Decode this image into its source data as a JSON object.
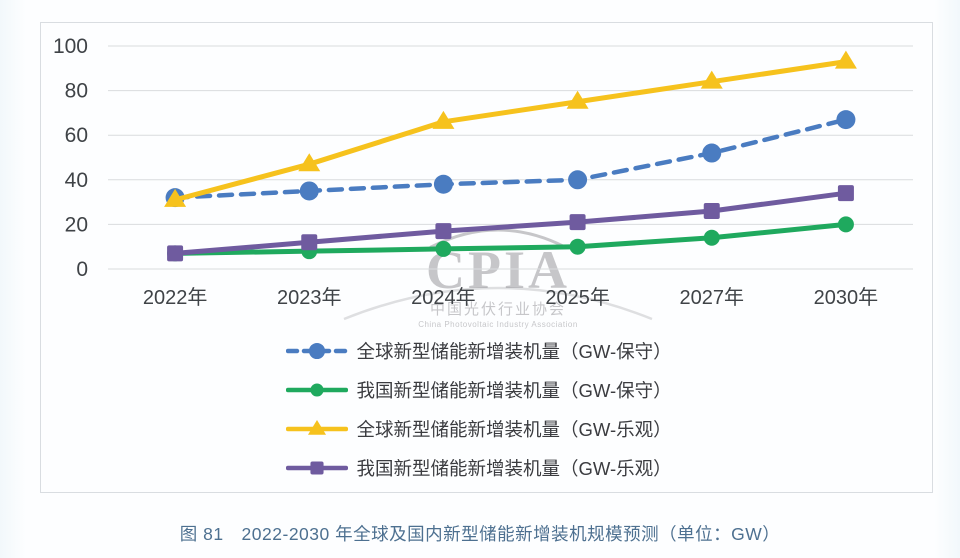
{
  "page": {
    "caption": "图 81　2022-2030 年全球及国内新型储能新增装机规模预测（单位：GW）"
  },
  "watermark": {
    "logo_text": "CPIA",
    "org_cn": "中国光伏行业协会",
    "org_en": "China Photovoltaic Industry Association"
  },
  "chart_data": {
    "type": "line",
    "categories": [
      "2022年",
      "2023年",
      "2024年",
      "2025年",
      "2027年",
      "2030年"
    ],
    "series": [
      {
        "name": "全球新型储能新增装机量（GW-保守）",
        "values": [
          32,
          35,
          38,
          40,
          52,
          67
        ],
        "color": "#4a7cc1",
        "marker": "circle",
        "dash": true
      },
      {
        "name": "我国新型储能新增装机量（GW-保守）",
        "values": [
          7,
          8,
          9,
          10,
          14,
          20
        ],
        "color": "#1fa95e",
        "marker": "circle",
        "dash": false
      },
      {
        "name": "全球新型储能新增装机量（GW-乐观）",
        "values": [
          31,
          47,
          66,
          75,
          84,
          93
        ],
        "color": "#f6c21d",
        "marker": "triangle",
        "dash": false
      },
      {
        "name": "我国新型储能新增装机量（GW-乐观）",
        "values": [
          7,
          12,
          17,
          21,
          26,
          34
        ],
        "color": "#6f5b9f",
        "marker": "square",
        "dash": false
      }
    ],
    "title": "",
    "xlabel": "",
    "ylabel": "",
    "ylim": [
      0,
      100
    ],
    "yticks": [
      0,
      20,
      40,
      60,
      80,
      100
    ],
    "grid": true,
    "grid_color": "#d9dcde",
    "tick_color": "#3f4347",
    "legend_position": "bottom"
  }
}
